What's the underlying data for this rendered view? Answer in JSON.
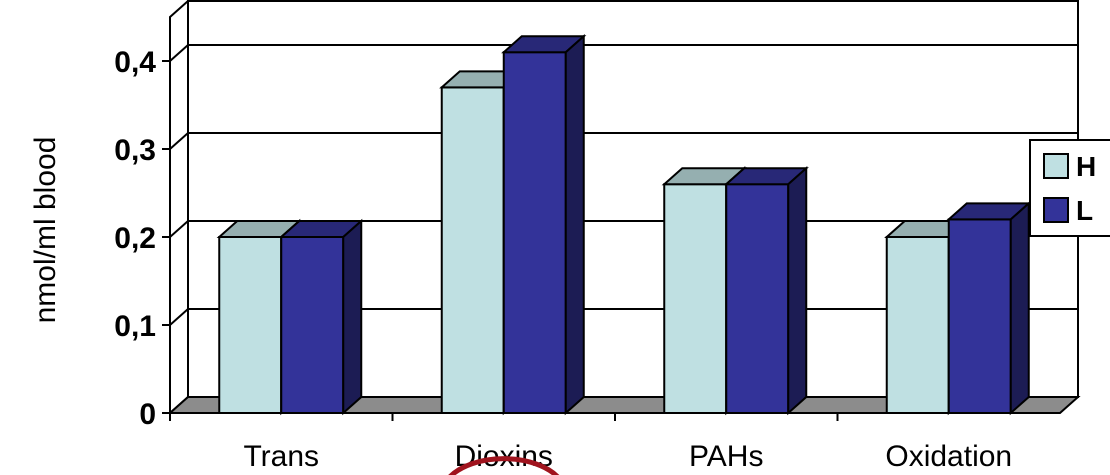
{
  "chart_data": {
    "type": "bar",
    "categories": [
      "Trans",
      "Dioxins",
      "PAHs",
      "Oxidation"
    ],
    "series": [
      {
        "name": "H",
        "values": [
          0.2,
          0.37,
          0.26,
          0.2
        ],
        "color": "#bfe0e2"
      },
      {
        "name": "L",
        "values": [
          0.2,
          0.41,
          0.26,
          0.22
        ],
        "color": "#333399"
      }
    ],
    "ylabel": "nmol/ml blood",
    "xlabel": "",
    "ylim": [
      0,
      0.45
    ],
    "yticks": [
      "0",
      "0,1",
      "0,2",
      "0,3",
      "0,4"
    ],
    "grid": true,
    "legend_position": "right",
    "highlighted_category": "Dioxins",
    "highlight_color": "#a0141e"
  }
}
